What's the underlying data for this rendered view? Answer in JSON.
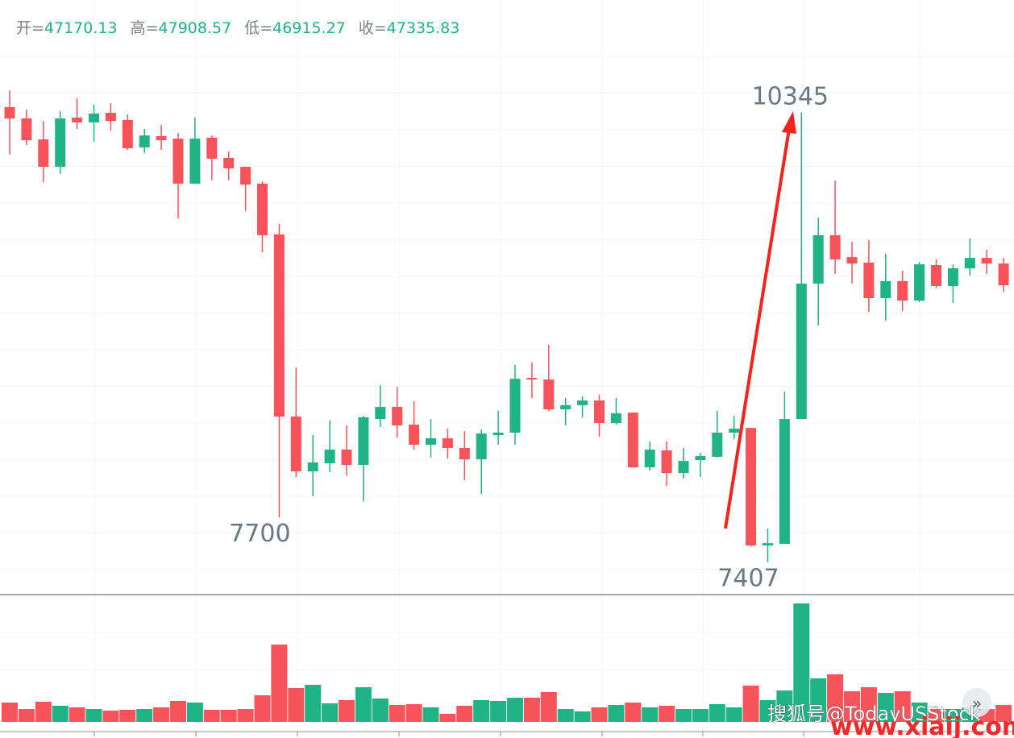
{
  "chart_data": {
    "type": "candlestick",
    "ohlc_header": [
      {
        "label": "开=",
        "value": "47170.13"
      },
      {
        "label": "高=",
        "value": "47908.57"
      },
      {
        "label": "低=",
        "value": "46915.27"
      },
      {
        "label": "收=",
        "value": "47335.83"
      }
    ],
    "up_color": "#1fb386",
    "down_color": "#f6535a",
    "ylim": [
      7200,
      11080
    ],
    "open": [
      10380,
      10306,
      10169,
      9990,
      10311,
      10280,
      10343,
      10296,
      10117,
      10190,
      10174,
      9880,
      10180,
      10048,
      9990,
      9880,
      9548,
      8358,
      8000,
      8053,
      8142,
      8042,
      8342,
      8421,
      8305,
      8174,
      8216,
      8153,
      8079,
      8237,
      8253,
      8611,
      8600,
      8405,
      8432,
      8463,
      8316,
      8384,
      8026,
      8137,
      7989,
      8074,
      8095,
      8253,
      8284,
      7516,
      7526,
      8342,
      9227,
      9543,
      9400,
      9364,
      9132,
      9243,
      9116,
      9348,
      9211,
      9327,
      9395,
      9358
    ],
    "high": [
      10490,
      10364,
      10290,
      10353,
      10438,
      10396,
      10406,
      10332,
      10238,
      10264,
      10211,
      10311,
      10195,
      10090,
      9990,
      9895,
      9616,
      8679,
      8237,
      8332,
      8300,
      8363,
      8563,
      8553,
      8458,
      8342,
      8279,
      8263,
      8274,
      8395,
      8695,
      8711,
      8827,
      8479,
      8490,
      8500,
      8479,
      8384,
      8195,
      8195,
      8153,
      8121,
      8395,
      8363,
      8284,
      7626,
      8521,
      10345,
      9658,
      9901,
      9500,
      9511,
      9422,
      9311,
      9369,
      9385,
      9353,
      9522,
      9448,
      9395
    ],
    "low": [
      10069,
      10132,
      9890,
      9943,
      10238,
      10153,
      10227,
      10101,
      10080,
      10101,
      9653,
      9880,
      9901,
      9901,
      9701,
      9432,
      7700,
      7963,
      7837,
      7995,
      7974,
      7805,
      8290,
      8221,
      8142,
      8089,
      8084,
      7942,
      7853,
      8174,
      8174,
      8479,
      8395,
      8300,
      8353,
      8226,
      8305,
      8026,
      8005,
      7905,
      7953,
      7963,
      8089,
      8211,
      7510,
      7407,
      7526,
      8342,
      8953,
      9290,
      9227,
      9042,
      8985,
      9048,
      9106,
      9195,
      9100,
      9279,
      9290,
      9174
    ],
    "close": [
      10306,
      10164,
      9990,
      10306,
      10280,
      10338,
      10290,
      10111,
      10195,
      10164,
      9880,
      10174,
      10043,
      9980,
      9874,
      9543,
      8358,
      8000,
      8058,
      8142,
      8042,
      8353,
      8421,
      8300,
      8174,
      8216,
      8153,
      8079,
      8247,
      8253,
      8605,
      8600,
      8405,
      8432,
      8463,
      8316,
      8379,
      8026,
      8142,
      7989,
      8068,
      8100,
      8253,
      8279,
      7516,
      7531,
      8342,
      9227,
      9543,
      9385,
      9358,
      9132,
      9243,
      9116,
      9353,
      9211,
      9327,
      9395,
      9358,
      9216
    ],
    "volume": {
      "ylim": [
        0,
        156
      ],
      "values": [
        24,
        16,
        25,
        20,
        18,
        16,
        14,
        15,
        16,
        18,
        26,
        24,
        15,
        15,
        16,
        33,
        96,
        42,
        46,
        23,
        27,
        43,
        29,
        21,
        22,
        18,
        10,
        20,
        27,
        26,
        30,
        30,
        37,
        16,
        13,
        18,
        21,
        24,
        18,
        20,
        16,
        16,
        22,
        18,
        45,
        27,
        39,
        147,
        54,
        59,
        38,
        43,
        36,
        38,
        24,
        16,
        16,
        18,
        16,
        21
      ]
    },
    "annotations": [
      {
        "text": "10345",
        "index": 47,
        "at": "high"
      },
      {
        "text": "7700",
        "index": 16,
        "at": "low"
      },
      {
        "text": "7407",
        "index": 45,
        "at": "low"
      }
    ],
    "watermark": [
      "搜狐号@TodayUSStock",
      "www.xiaij.com"
    ]
  }
}
